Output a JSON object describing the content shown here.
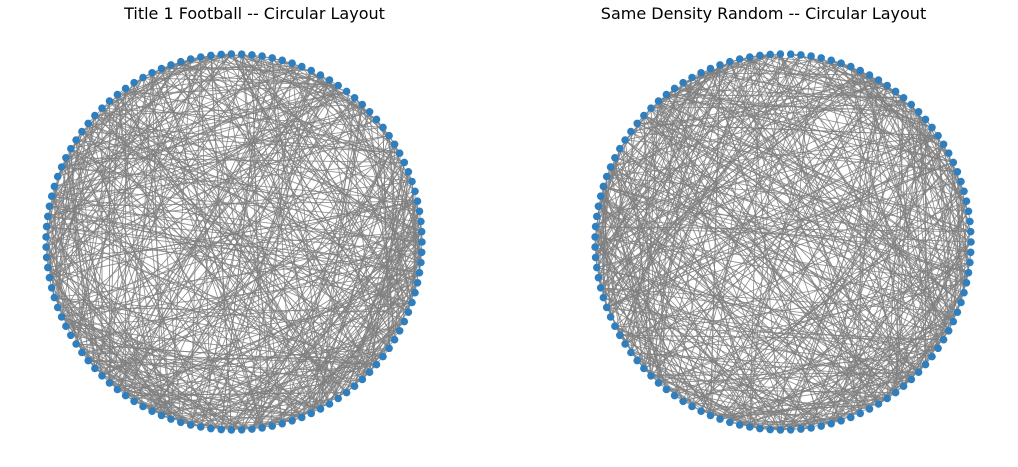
{
  "panels": [
    {
      "title": "Title 1 Football -- Circular Layout",
      "node_count": 115,
      "edge_count": 613,
      "seed": 7
    },
    {
      "title": "Same Density Random -- Circular Layout",
      "node_count": 115,
      "edge_count": 613,
      "seed": 91
    }
  ],
  "colors": {
    "node": "#2f7fbf",
    "edge": "#808080"
  }
}
